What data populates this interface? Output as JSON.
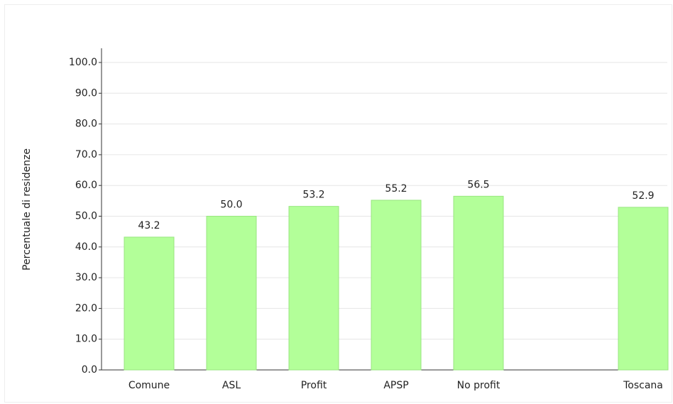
{
  "chart_data": {
    "type": "bar",
    "y_label": "Percentuale di residenze",
    "categories": [
      "Comune",
      "ASL",
      "Profit",
      "APSP",
      "No profit",
      null,
      "Toscana"
    ],
    "values": [
      43.2,
      50.0,
      53.2,
      55.2,
      56.5,
      null,
      52.9
    ],
    "value_labels": [
      "43.2",
      "50.0",
      "53.2",
      "55.2",
      "56.5",
      null,
      "52.9"
    ],
    "color": "#b3ff99",
    "ylim": [
      0,
      100
    ],
    "yticks": [
      {
        "value": 0,
        "label": "0.0"
      },
      {
        "value": 10,
        "label": "10.0"
      },
      {
        "value": 20,
        "label": "20.0"
      },
      {
        "value": 30,
        "label": "30.0"
      },
      {
        "value": 40,
        "label": "40.0"
      },
      {
        "value": 50,
        "label": "50.0"
      },
      {
        "value": 60,
        "label": "60.0"
      },
      {
        "value": 70,
        "label": "70.0"
      },
      {
        "value": 80,
        "label": "80.0"
      },
      {
        "value": 90,
        "label": "90.0"
      },
      {
        "value": 100,
        "label": "100.0"
      }
    ],
    "grid": true
  }
}
